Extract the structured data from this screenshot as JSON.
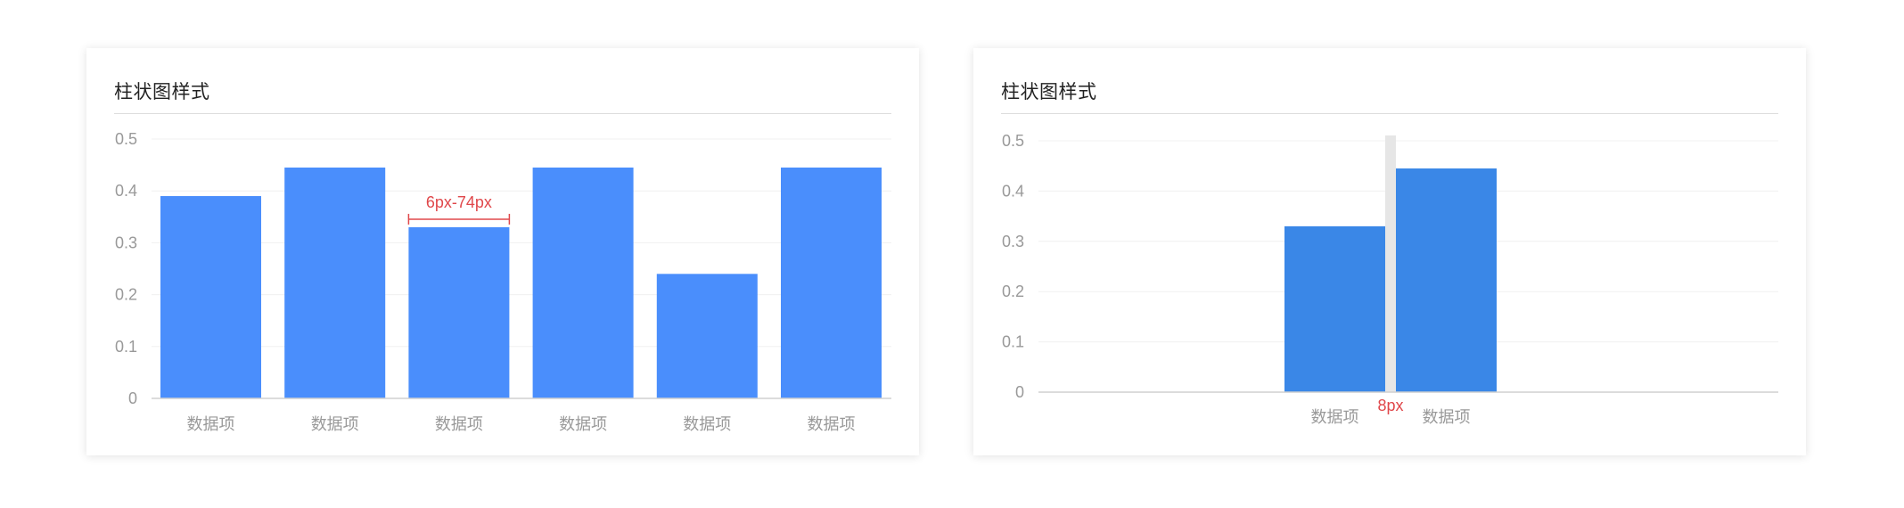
{
  "chart_data": [
    {
      "type": "bar",
      "title": "柱状图样式",
      "categories": [
        "数据项",
        "数据项",
        "数据项",
        "数据项",
        "数据项",
        "数据项"
      ],
      "values": [
        0.39,
        0.445,
        0.33,
        0.445,
        0.24,
        0.445
      ],
      "ylim": [
        0,
        0.5
      ],
      "yticks": [
        "0",
        "0.1",
        "0.2",
        "0.3",
        "0.4",
        "0.5"
      ],
      "grid": true,
      "bar_color": "#4a8efc",
      "annotation": "6px-74px",
      "annotation_color": "#e0484b"
    },
    {
      "type": "bar",
      "title": "柱状图样式",
      "categories": [
        "数据项",
        "数据项"
      ],
      "values": [
        0.33,
        0.445
      ],
      "ylim": [
        0,
        0.5
      ],
      "yticks": [
        "0",
        "0.1",
        "0.2",
        "0.3",
        "0.4",
        "0.5"
      ],
      "grid": true,
      "bar_color": "#3a87e7",
      "annotation": "8px",
      "annotation_color": "#e0484b"
    }
  ]
}
